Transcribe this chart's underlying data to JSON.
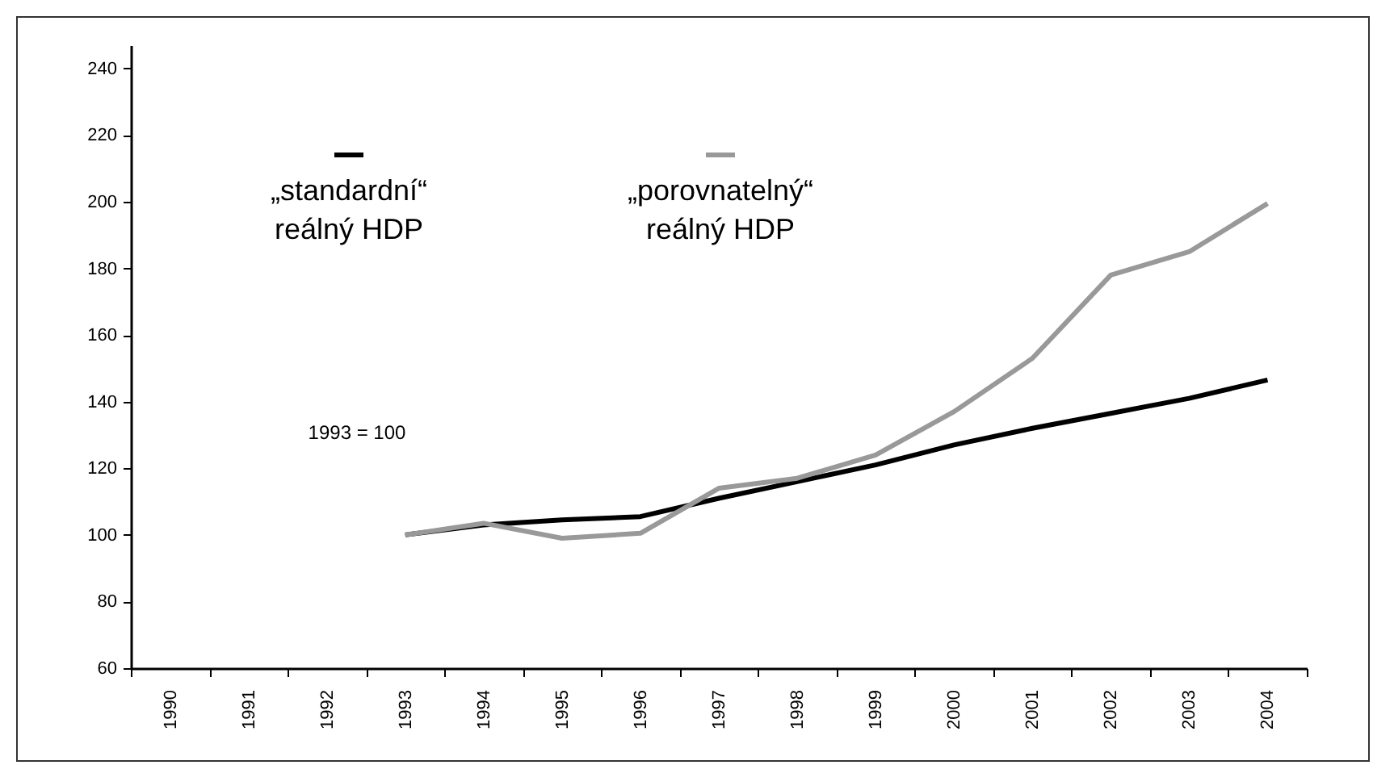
{
  "chart_data": {
    "type": "line",
    "categories": [
      "1990",
      "1991",
      "1992",
      "1993",
      "1994",
      "1995",
      "1996",
      "1997",
      "1998",
      "1999",
      "2000",
      "2001",
      "2002",
      "2003",
      "2004"
    ],
    "series": [
      {
        "name": "„standardní“\nreálný HDP",
        "color": "#000000",
        "values": [
          null,
          null,
          null,
          100,
          103,
          104.5,
          105.5,
          111,
          116,
          121,
          127,
          132,
          136.5,
          141,
          146.5
        ]
      },
      {
        "name": "„porovnatelný“\nreálný HDP",
        "color": "#999999",
        "values": [
          null,
          null,
          null,
          100,
          103.5,
          99,
          100.5,
          114,
          117,
          124,
          137,
          153,
          178,
          185,
          199.5
        ]
      }
    ],
    "ylim": [
      60,
      247
    ],
    "yticks": [
      60,
      80,
      100,
      120,
      140,
      160,
      180,
      200,
      220,
      240
    ],
    "grid": false,
    "legend": "top left",
    "marker": "none",
    "line_style": "solid",
    "annotations": [
      "1993 = 100"
    ]
  }
}
